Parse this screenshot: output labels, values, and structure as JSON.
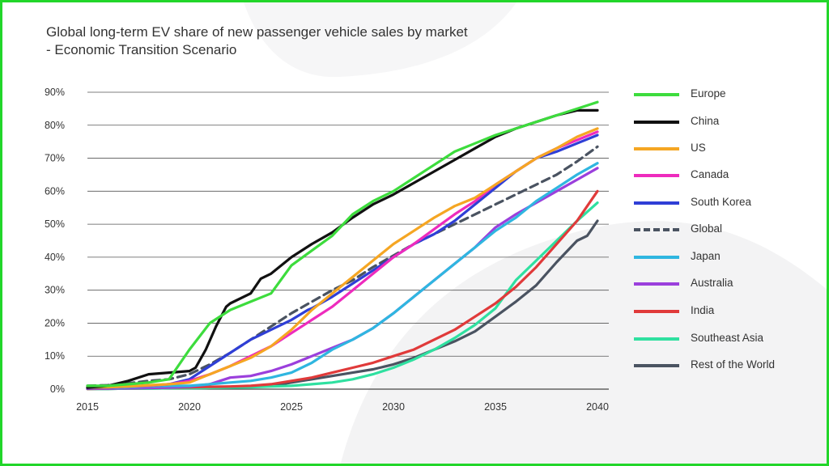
{
  "title_line1": "Global long-term EV share of new passenger vehicle sales by market",
  "title_line2": "- Economic Transition Scenario",
  "chart_data": {
    "type": "line",
    "title": "Global long-term EV share of new passenger vehicle sales by market - Economic Transition Scenario",
    "xlabel": "",
    "ylabel": "",
    "xlim": [
      2015,
      2040
    ],
    "ylim": [
      0,
      90
    ],
    "x_ticks": [
      "2015",
      "2020",
      "2025",
      "2030",
      "2035",
      "2040"
    ],
    "y_ticks": [
      "0%",
      "10%",
      "20%",
      "30%",
      "40%",
      "50%",
      "60%",
      "70%",
      "80%",
      "90%"
    ],
    "grid": "horizontal",
    "legend_position": "right",
    "series": [
      {
        "name": "Europe",
        "color": "#3ddc3d",
        "dashed": false,
        "x": [
          2015,
          2016,
          2017,
          2018,
          2019,
          2020,
          2021,
          2022,
          2023,
          2024,
          2025,
          2026,
          2027,
          2028,
          2029,
          2030,
          2031,
          2032,
          2033,
          2034,
          2035,
          2036,
          2037,
          2038,
          2039,
          2040
        ],
        "y": [
          1,
          1,
          1.5,
          2,
          3,
          12,
          20,
          24,
          26.5,
          29,
          37.5,
          42,
          46.5,
          53,
          57,
          60,
          64,
          68,
          72,
          74.5,
          77,
          79,
          81,
          83,
          85,
          87
        ]
      },
      {
        "name": "China",
        "color": "#111111",
        "dashed": false,
        "x": [
          2015,
          2016,
          2017,
          2018,
          2019,
          2020,
          2020.3,
          2020.8,
          2021.3,
          2021.8,
          2022,
          2023,
          2023.5,
          2024,
          2025,
          2026,
          2027,
          2028,
          2029,
          2030,
          2031,
          2032,
          2033,
          2034,
          2035,
          2036,
          2037,
          2038,
          2039,
          2040
        ],
        "y": [
          0.5,
          1,
          2.5,
          4.5,
          5,
          5.5,
          6.5,
          12,
          19,
          25,
          26,
          29,
          33.5,
          35,
          40,
          44,
          47.5,
          52,
          56,
          59,
          62.5,
          66,
          69.5,
          73,
          76.5,
          79,
          81,
          83,
          84.5,
          84.5
        ]
      },
      {
        "name": "US",
        "color": "#f5a623",
        "dashed": false,
        "x": [
          2015,
          2016,
          2017,
          2018,
          2019,
          2020,
          2021,
          2022,
          2023,
          2024,
          2025,
          2026,
          2027,
          2028,
          2029,
          2030,
          2031,
          2032,
          2033,
          2034,
          2035,
          2036,
          2037,
          2038,
          2039,
          2040
        ],
        "y": [
          0.5,
          0.6,
          0.8,
          1.2,
          1.5,
          2,
          4.5,
          7,
          9.5,
          13,
          18,
          24,
          29,
          34,
          39,
          44,
          48,
          52,
          55.5,
          58,
          62,
          66,
          70,
          73,
          76.5,
          79
        ]
      },
      {
        "name": "Canada",
        "color": "#ee2bbd",
        "dashed": false,
        "x": [
          2015,
          2016,
          2017,
          2018,
          2019,
          2020,
          2021,
          2022,
          2023,
          2024,
          2025,
          2026,
          2027,
          2028,
          2029,
          2030,
          2031,
          2032,
          2033,
          2034,
          2035,
          2036,
          2037,
          2038,
          2039,
          2040
        ],
        "y": [
          0.5,
          0.6,
          0.8,
          1,
          1.5,
          2.5,
          4.5,
          7,
          10,
          13,
          17,
          21,
          25,
          30,
          35,
          40,
          44,
          48.5,
          53,
          57,
          62,
          66,
          70,
          73,
          75.5,
          78
        ]
      },
      {
        "name": "South Korea",
        "color": "#2f3fd6",
        "dashed": false,
        "x": [
          2015,
          2016,
          2017,
          2018,
          2019,
          2020,
          2021,
          2022,
          2023,
          2024,
          2025,
          2025.8,
          2026,
          2027,
          2028,
          2029,
          2030,
          2031,
          2032,
          2033,
          2034,
          2035,
          2036,
          2037,
          2038,
          2039,
          2040
        ],
        "y": [
          0.3,
          0.5,
          0.8,
          1,
          1.5,
          3,
          7,
          11,
          15,
          18,
          21,
          24,
          24.5,
          28,
          32,
          36,
          40,
          44,
          47,
          51,
          56,
          61,
          66,
          70,
          72,
          74.5,
          77
        ]
      },
      {
        "name": "Global",
        "color": "#4a5361",
        "dashed": true,
        "x": [
          2015,
          2016,
          2017,
          2018,
          2019,
          2020,
          2021,
          2022,
          2023,
          2024,
          2025,
          2026,
          2027,
          2028,
          2029,
          2030,
          2031,
          2032,
          2033,
          2034,
          2035,
          2036,
          2037,
          2038,
          2039,
          2040
        ],
        "y": [
          1,
          1.2,
          1.8,
          2.5,
          3,
          4.5,
          7.5,
          11,
          15,
          19,
          23,
          26.5,
          30,
          33,
          37,
          40.5,
          44,
          47,
          50,
          53,
          56,
          59,
          62,
          65,
          69,
          73.5
        ]
      },
      {
        "name": "Japan",
        "color": "#2fb6e0",
        "dashed": false,
        "x": [
          2015,
          2016,
          2017,
          2018,
          2019,
          2020,
          2021,
          2022,
          2023,
          2024,
          2025,
          2026,
          2027,
          2028,
          2029,
          2030,
          2031,
          2032,
          2033,
          2034,
          2035,
          2036,
          2037,
          2038,
          2039,
          2040
        ],
        "y": [
          0.5,
          0.5,
          0.6,
          0.8,
          1,
          1,
          1.5,
          2,
          2.5,
          3.5,
          5,
          8,
          12,
          15,
          18.5,
          23,
          28,
          33,
          38,
          43,
          48,
          52,
          57,
          61,
          65,
          68.5
        ]
      },
      {
        "name": "Australia",
        "color": "#9b3fdc",
        "dashed": false,
        "x": [
          2015,
          2016,
          2017,
          2018,
          2019,
          2020,
          2021,
          2022,
          2023,
          2024,
          2025,
          2026,
          2027,
          2028,
          2029,
          2030,
          2031,
          2032,
          2033,
          2034,
          2035,
          2036,
          2037,
          2038,
          2039,
          2040
        ],
        "y": [
          0.2,
          0.2,
          0.3,
          0.4,
          0.5,
          0.8,
          1.5,
          3.5,
          4,
          5.5,
          7.5,
          10,
          12.5,
          15,
          18.5,
          23,
          28,
          33,
          38,
          43,
          49,
          53,
          56.5,
          60,
          63.5,
          67
        ]
      },
      {
        "name": "India",
        "color": "#e03a3a",
        "dashed": false,
        "x": [
          2015,
          2016,
          2017,
          2018,
          2019,
          2020,
          2021,
          2022,
          2023,
          2024,
          2025,
          2026,
          2027,
          2028,
          2029,
          2030,
          2031,
          2032,
          2033,
          2034,
          2035,
          2036,
          2037,
          2038,
          2039,
          2040
        ],
        "y": [
          0.1,
          0.2,
          0.3,
          0.4,
          0.5,
          0.6,
          0.7,
          0.8,
          1,
          1.5,
          2.5,
          3.5,
          5,
          6.5,
          8,
          10,
          12,
          15,
          18,
          22,
          26,
          31,
          37,
          44,
          51,
          60
        ]
      },
      {
        "name": "Southeast Asia",
        "color": "#2fe0a0",
        "dashed": false,
        "x": [
          2015,
          2016,
          2017,
          2018,
          2019,
          2020,
          2021,
          2022,
          2023,
          2024,
          2025,
          2026,
          2027,
          2028,
          2029,
          2030,
          2031,
          2032,
          2033,
          2034,
          2035,
          2036,
          2037,
          2038,
          2039,
          2040
        ],
        "y": [
          0.1,
          0.1,
          0.2,
          0.2,
          0.3,
          0.3,
          0.4,
          0.5,
          0.6,
          0.8,
          1,
          1.5,
          2,
          3,
          4.5,
          6.5,
          9,
          12,
          15.5,
          19.5,
          24.5,
          33,
          39,
          45,
          51,
          56.5
        ]
      },
      {
        "name": "Rest of the World",
        "color": "#4a5361",
        "dashed": false,
        "x": [
          2015,
          2016,
          2017,
          2018,
          2019,
          2020,
          2021,
          2022,
          2023,
          2024,
          2025,
          2026,
          2027,
          2028,
          2029,
          2030,
          2031,
          2032,
          2033,
          2034,
          2035,
          2036,
          2037,
          2038,
          2039,
          2039.5,
          2040
        ],
        "y": [
          0.1,
          0.1,
          0.2,
          0.2,
          0.3,
          0.3,
          0.4,
          0.5,
          0.8,
          1,
          2,
          3,
          4,
          5,
          6,
          7.5,
          9.5,
          12,
          14.5,
          17.5,
          22,
          26.5,
          31.5,
          38.5,
          45,
          46.5,
          51
        ]
      }
    ]
  }
}
